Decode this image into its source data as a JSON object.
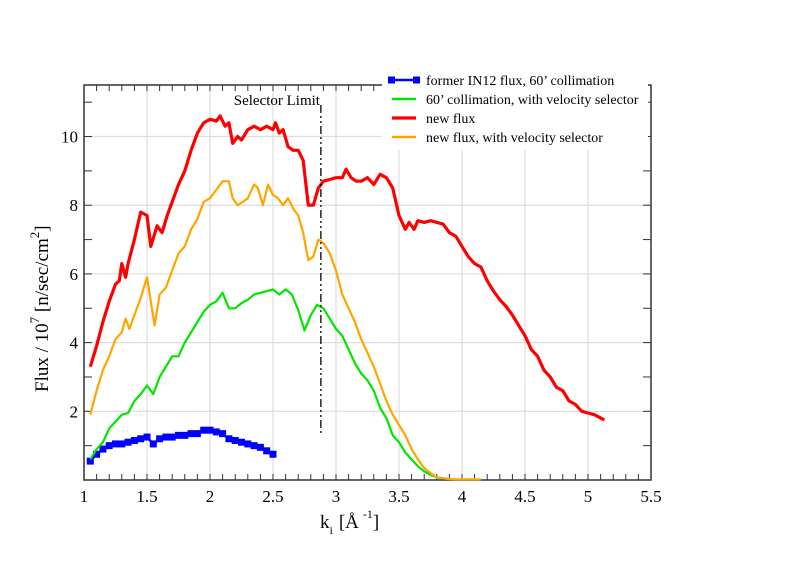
{
  "chart_data": {
    "type": "line",
    "title": "",
    "xlabel": "k_i [Å^-1]",
    "xlabel_main": "k",
    "xlabel_sub": "i",
    "xlabel_unit_open": "[Å",
    "xlabel_sup": "-1",
    "xlabel_unit_close": "]",
    "ylabel": "Flux / 10^7 [n/sec/cm^2]",
    "ylabel_main": "Flux / 10",
    "ylabel_sup1": "7",
    "ylabel_unit": " [n/sec/cm",
    "ylabel_sup2": "2",
    "ylabel_close": "]",
    "xlim": [
      1,
      5.5
    ],
    "ylim": [
      0,
      11.5
    ],
    "xticks": [
      1,
      1.5,
      2,
      2.5,
      3,
      3.5,
      4,
      4.5,
      5,
      5.5
    ],
    "xtick_labels": [
      "1",
      "1.5",
      "2",
      "2.5",
      "3",
      "3.5",
      "4",
      "4.5",
      "5",
      "5.5"
    ],
    "yticks": [
      2,
      4,
      6,
      8,
      10
    ],
    "ytick_labels": [
      "2",
      "4",
      "6",
      "8",
      "10"
    ],
    "grid": true,
    "legend_position": "top-right-outside",
    "annotation": {
      "text": "Selector Limit",
      "x": 2.88,
      "y_range": [
        1.3,
        11.5
      ]
    },
    "series": [
      {
        "name": "former IN12 flux, 60’ collimation",
        "color": "#0000ff",
        "marker": "square",
        "x": [
          1.05,
          1.1,
          1.15,
          1.2,
          1.25,
          1.3,
          1.35,
          1.4,
          1.45,
          1.5,
          1.55,
          1.6,
          1.65,
          1.7,
          1.75,
          1.8,
          1.85,
          1.9,
          1.95,
          2.0,
          2.05,
          2.1,
          2.15,
          2.2,
          2.25,
          2.3,
          2.35,
          2.4,
          2.45,
          2.5
        ],
        "y": [
          0.55,
          0.75,
          0.9,
          1.0,
          1.05,
          1.05,
          1.1,
          1.15,
          1.2,
          1.25,
          1.05,
          1.2,
          1.25,
          1.25,
          1.3,
          1.3,
          1.35,
          1.35,
          1.45,
          1.45,
          1.4,
          1.35,
          1.2,
          1.15,
          1.1,
          1.05,
          1.0,
          0.95,
          0.85,
          0.75
        ]
      },
      {
        "name": "60’ collimation, with velocity selector",
        "color": "#00e600",
        "x": [
          1.05,
          1.1,
          1.15,
          1.2,
          1.25,
          1.3,
          1.35,
          1.4,
          1.45,
          1.5,
          1.55,
          1.6,
          1.65,
          1.7,
          1.75,
          1.8,
          1.85,
          1.9,
          1.95,
          2.0,
          2.05,
          2.1,
          2.15,
          2.2,
          2.25,
          2.3,
          2.35,
          2.4,
          2.45,
          2.5,
          2.55,
          2.6,
          2.65,
          2.7,
          2.75,
          2.8,
          2.85,
          2.9,
          2.95,
          3.0,
          3.05,
          3.1,
          3.15,
          3.2,
          3.25,
          3.3,
          3.35,
          3.4,
          3.45,
          3.5,
          3.55,
          3.6,
          3.65,
          3.7,
          3.75,
          3.8,
          3.85,
          3.9
        ],
        "y": [
          0.6,
          0.9,
          1.1,
          1.5,
          1.7,
          1.9,
          1.95,
          2.3,
          2.5,
          2.75,
          2.5,
          3.0,
          3.3,
          3.6,
          3.6,
          4.0,
          4.3,
          4.6,
          4.9,
          5.1,
          5.2,
          5.45,
          5.0,
          5.0,
          5.15,
          5.25,
          5.4,
          5.45,
          5.5,
          5.55,
          5.4,
          5.55,
          5.4,
          4.95,
          4.35,
          4.8,
          5.1,
          5.0,
          4.7,
          4.4,
          4.2,
          3.8,
          3.4,
          3.1,
          2.9,
          2.6,
          2.1,
          1.8,
          1.3,
          1.1,
          0.8,
          0.6,
          0.4,
          0.25,
          0.15,
          0.08,
          0.05,
          0.03
        ]
      },
      {
        "name": "new flux",
        "color": "#ff0000",
        "x": [
          1.05,
          1.1,
          1.15,
          1.2,
          1.25,
          1.28,
          1.3,
          1.33,
          1.35,
          1.4,
          1.45,
          1.5,
          1.53,
          1.58,
          1.62,
          1.66,
          1.7,
          1.75,
          1.8,
          1.85,
          1.9,
          1.95,
          2.0,
          2.05,
          2.08,
          2.12,
          2.15,
          2.18,
          2.22,
          2.25,
          2.3,
          2.35,
          2.4,
          2.45,
          2.5,
          2.52,
          2.55,
          2.58,
          2.62,
          2.66,
          2.7,
          2.74,
          2.78,
          2.82,
          2.86,
          2.9,
          2.95,
          3.0,
          3.05,
          3.08,
          3.12,
          3.16,
          3.2,
          3.25,
          3.3,
          3.35,
          3.4,
          3.45,
          3.5,
          3.55,
          3.58,
          3.62,
          3.65,
          3.7,
          3.75,
          3.8,
          3.85,
          3.9,
          3.95,
          4.0,
          4.05,
          4.1,
          4.15,
          4.2,
          4.25,
          4.3,
          4.35,
          4.4,
          4.45,
          4.5,
          4.55,
          4.6,
          4.65,
          4.7,
          4.75,
          4.8,
          4.85,
          4.9,
          4.95,
          5.0,
          5.05,
          5.13
        ],
        "y": [
          3.3,
          3.9,
          4.6,
          5.2,
          5.7,
          5.8,
          6.3,
          5.9,
          6.3,
          7.0,
          7.8,
          7.7,
          6.8,
          7.4,
          7.2,
          7.7,
          8.1,
          8.6,
          9.0,
          9.6,
          10.1,
          10.4,
          10.5,
          10.45,
          10.6,
          10.3,
          10.4,
          9.8,
          10.0,
          9.9,
          10.2,
          10.3,
          10.2,
          10.3,
          10.2,
          10.4,
          10.1,
          10.2,
          9.7,
          9.6,
          9.6,
          9.3,
          8.0,
          8.0,
          8.5,
          8.7,
          8.75,
          8.8,
          8.8,
          9.05,
          8.8,
          8.7,
          8.7,
          8.8,
          8.6,
          8.9,
          8.8,
          8.5,
          7.7,
          7.3,
          7.5,
          7.3,
          7.55,
          7.5,
          7.55,
          7.5,
          7.45,
          7.2,
          7.1,
          6.8,
          6.5,
          6.3,
          6.2,
          5.8,
          5.5,
          5.25,
          5.05,
          4.8,
          4.5,
          4.2,
          3.8,
          3.6,
          3.2,
          3.0,
          2.7,
          2.6,
          2.3,
          2.2,
          2.0,
          1.95,
          1.9,
          1.75
        ]
      },
      {
        "name": "new flux, with velocity selector",
        "color": "#ffa500",
        "x": [
          1.05,
          1.1,
          1.15,
          1.2,
          1.25,
          1.3,
          1.33,
          1.36,
          1.4,
          1.45,
          1.5,
          1.53,
          1.56,
          1.6,
          1.65,
          1.7,
          1.75,
          1.8,
          1.85,
          1.9,
          1.95,
          2.0,
          2.05,
          2.1,
          2.15,
          2.18,
          2.22,
          2.26,
          2.3,
          2.35,
          2.38,
          2.42,
          2.46,
          2.5,
          2.54,
          2.58,
          2.62,
          2.66,
          2.7,
          2.74,
          2.78,
          2.82,
          2.86,
          2.9,
          2.95,
          3.0,
          3.05,
          3.1,
          3.15,
          3.2,
          3.25,
          3.3,
          3.35,
          3.4,
          3.45,
          3.5,
          3.55,
          3.6,
          3.65,
          3.7,
          3.75,
          3.8,
          3.85,
          3.9,
          3.95,
          4.0,
          4.05,
          4.1,
          4.15
        ],
        "y": [
          1.9,
          2.6,
          3.2,
          3.6,
          4.1,
          4.3,
          4.7,
          4.4,
          4.8,
          5.3,
          5.9,
          5.2,
          4.5,
          5.4,
          5.6,
          6.1,
          6.6,
          6.8,
          7.3,
          7.6,
          8.1,
          8.2,
          8.45,
          8.7,
          8.7,
          8.2,
          8.0,
          8.1,
          8.2,
          8.6,
          8.5,
          8.0,
          8.6,
          8.3,
          8.2,
          8.0,
          8.2,
          7.9,
          7.7,
          7.2,
          6.4,
          6.5,
          7.0,
          6.9,
          6.6,
          6.1,
          5.4,
          5.0,
          4.6,
          4.1,
          3.7,
          3.3,
          2.8,
          2.3,
          1.9,
          1.6,
          1.3,
          0.9,
          0.6,
          0.35,
          0.2,
          0.08,
          0.05,
          0.03,
          0.02,
          0.02,
          0.02,
          0.02,
          0.02
        ]
      }
    ]
  }
}
